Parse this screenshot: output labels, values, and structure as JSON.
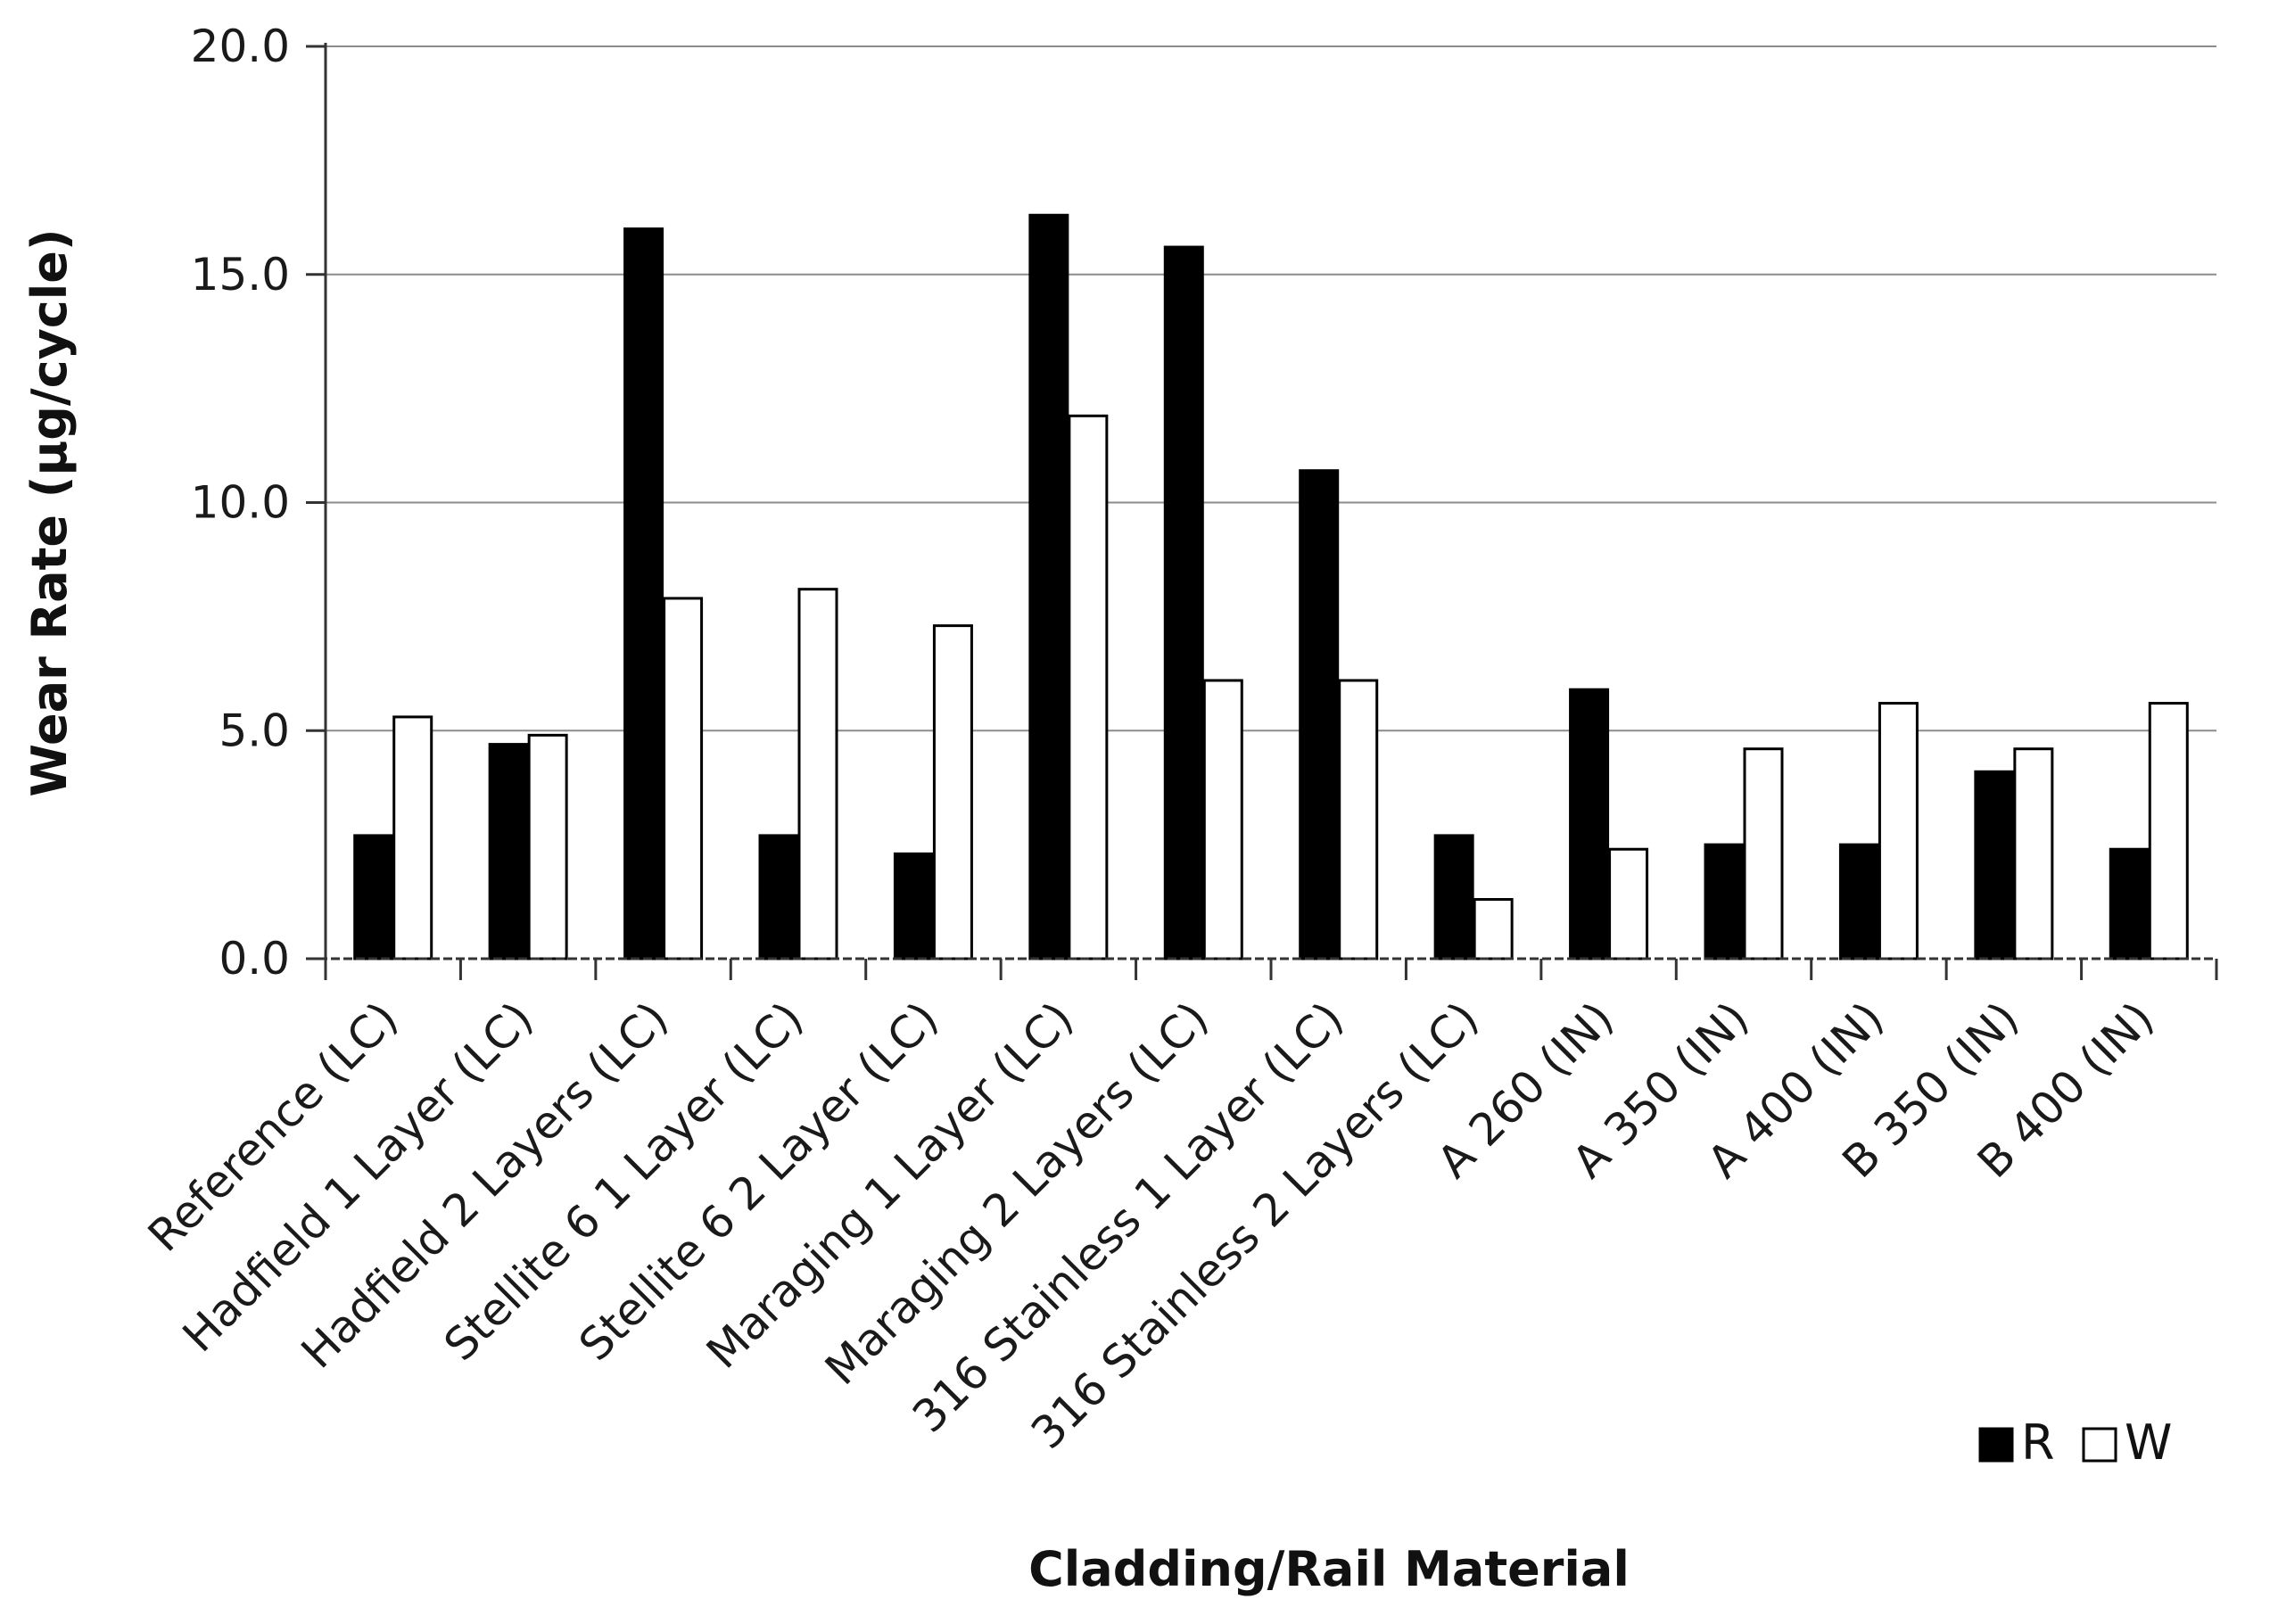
{
  "chart_data": {
    "type": "bar",
    "title": "",
    "xlabel": "Cladding/Rail Material",
    "ylabel": "Wear Rate (μg/cycle)",
    "ylim": [
      0,
      20
    ],
    "yticks": [
      "0.0",
      "5.0",
      "10.0",
      "15.0",
      "20.0"
    ],
    "ytick_values": [
      0,
      5,
      10,
      15,
      20
    ],
    "grid": true,
    "legend_position": "bottom-right",
    "categories": [
      "Reference (LC)",
      "Hadfield 1 Layer (LC)",
      "Hadfield 2 Layers (LC)",
      "Stellite 6 1 Layer (LC)",
      "Stellite 6 2 Layer (LC)",
      "Maraging 1 Layer (LC)",
      "Maraging 2 Layers (LC)",
      "316 Stainless 1 Layer (LC)",
      "316 Stainless 2 Layers (LC)",
      "A 260 (IN)",
      "A 350 (IN)",
      "A 400 (IN)",
      "B 350 (IN)",
      "B 400 (IN)"
    ],
    "series": [
      {
        "name": "R",
        "color": "#000000",
        "values": [
          2.7,
          4.7,
          16.0,
          2.7,
          2.3,
          16.3,
          15.6,
          10.7,
          2.7,
          5.9,
          2.5,
          2.5,
          4.1,
          2.4
        ]
      },
      {
        "name": "W",
        "color": "#ffffff",
        "values": [
          5.3,
          4.9,
          7.9,
          8.1,
          7.3,
          11.9,
          6.1,
          6.1,
          1.3,
          2.4,
          4.6,
          5.6,
          4.6,
          5.6
        ]
      }
    ]
  },
  "colors": {
    "bar_outline": "#000000",
    "gridline": "#8c8c8c",
    "axis": "#333333"
  }
}
